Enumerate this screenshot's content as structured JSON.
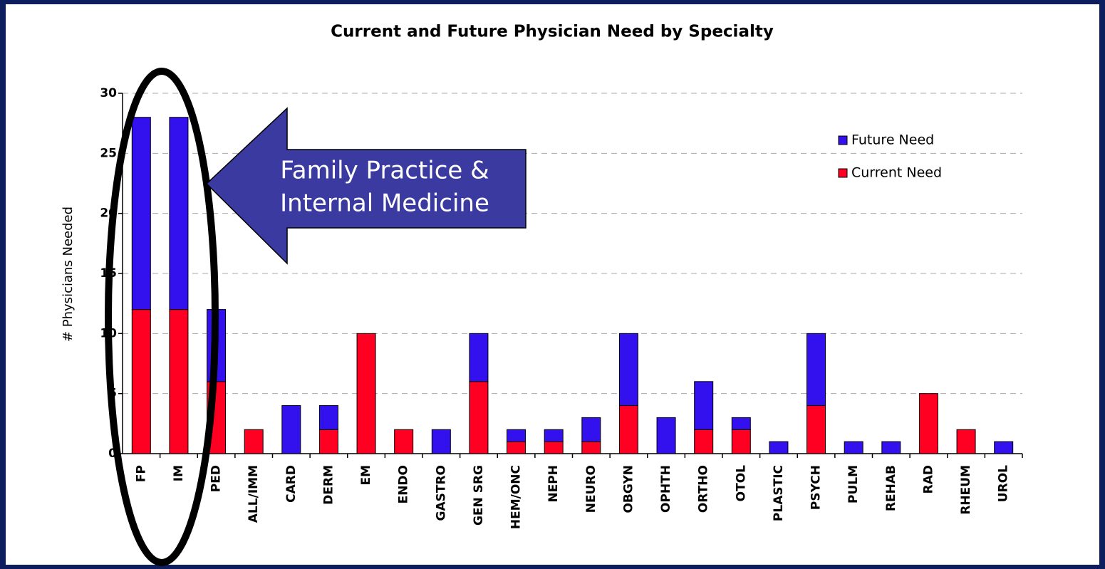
{
  "chart_data": {
    "type": "stacked_bar",
    "title": "Current and Future Physician Need by Specialty",
    "y_label": "# Physicians Needed",
    "categories": [
      "FP",
      "IM",
      "PED",
      "ALL/IMM",
      "CARD",
      "DERM",
      "EM",
      "ENDO",
      "GASTRO",
      "GEN SRG",
      "HEM/ONC",
      "NEPH",
      "NEURO",
      "OBGYN",
      "OPHTH",
      "ORTHO",
      "OTOL",
      "PLASTIC",
      "PSYCH",
      "PULM",
      "REHAB",
      "RAD",
      "RHEUM",
      "UROL"
    ],
    "series": [
      {
        "name": "Current Need",
        "color": "#ff0022",
        "values": [
          12,
          12,
          6,
          2,
          0,
          2,
          10,
          2,
          0,
          6,
          1,
          1,
          1,
          4,
          0,
          2,
          2,
          0,
          4,
          0,
          0,
          5,
          2,
          0
        ]
      },
      {
        "name": "Future Need",
        "color": "#3311ee",
        "values": [
          16,
          16,
          6,
          0,
          4,
          2,
          0,
          0,
          2,
          4,
          1,
          1,
          2,
          6,
          3,
          4,
          1,
          1,
          6,
          1,
          1,
          0,
          0,
          1
        ]
      }
    ],
    "ylim": [
      0,
      30
    ],
    "yticks": [
      0,
      5,
      10,
      15,
      20,
      25,
      30
    ],
    "grid": true,
    "legend": "upper right",
    "annotation": [
      "Family Practice &",
      "Internal Medicine"
    ]
  }
}
